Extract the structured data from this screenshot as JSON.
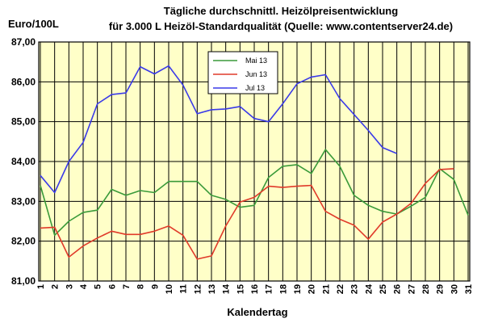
{
  "chart_data": {
    "type": "line",
    "title": "Tägliche durchschnittl. Heizölpreisentwicklung",
    "subtitle": "für 3.000 L Heizöl-Standardqualität (Quelle: www.contentserver24.de)",
    "xlabel": "Kalendertag",
    "ylabel": "Euro/100L",
    "ylim": [
      81,
      87
    ],
    "yticks": [
      "81,00",
      "82,00",
      "83,00",
      "84,00",
      "85,00",
      "86,00",
      "87,00"
    ],
    "x": [
      1,
      2,
      3,
      4,
      5,
      6,
      7,
      8,
      9,
      10,
      11,
      12,
      13,
      14,
      15,
      16,
      17,
      18,
      19,
      20,
      21,
      22,
      23,
      24,
      25,
      26,
      27,
      28,
      29,
      30,
      31
    ],
    "grid": true,
    "legend_position": "top-center",
    "plot_background": "#ffffc8",
    "series": [
      {
        "name": "Mai 13",
        "color": "#3a9a3a",
        "values": [
          83.4,
          82.15,
          82.5,
          82.72,
          82.78,
          83.3,
          83.15,
          83.27,
          83.22,
          83.5,
          83.5,
          83.5,
          83.15,
          83.05,
          82.85,
          82.9,
          83.6,
          83.88,
          83.92,
          83.7,
          84.3,
          83.88,
          83.15,
          82.9,
          82.75,
          82.68,
          82.88,
          83.1,
          83.82,
          83.55,
          82.65
        ]
      },
      {
        "name": "Jun 13",
        "color": "#e03a2a",
        "values": [
          82.33,
          82.35,
          81.6,
          81.88,
          82.08,
          82.25,
          82.17,
          82.17,
          82.25,
          82.38,
          82.15,
          81.55,
          81.63,
          82.38,
          82.98,
          83.1,
          83.38,
          83.35,
          83.38,
          83.4,
          82.75,
          82.55,
          82.4,
          82.05,
          82.48,
          82.68,
          82.95,
          83.45,
          83.8,
          83.82,
          null
        ]
      },
      {
        "name": "Jul 13",
        "color": "#3a3ae8",
        "values": [
          83.65,
          83.22,
          84.0,
          84.48,
          85.45,
          85.68,
          85.72,
          86.38,
          86.2,
          86.4,
          85.92,
          85.2,
          85.3,
          85.32,
          85.38,
          85.08,
          85.0,
          85.45,
          85.95,
          86.12,
          86.18,
          85.58,
          85.18,
          84.78,
          84.35,
          84.2,
          null,
          null,
          null,
          null,
          null
        ]
      }
    ]
  }
}
